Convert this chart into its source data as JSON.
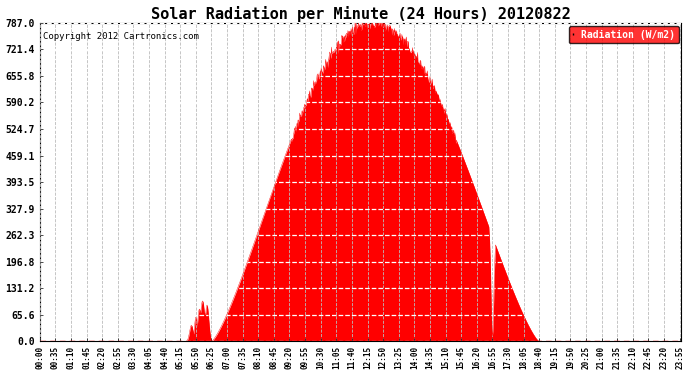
{
  "title": "Solar Radiation per Minute (24 Hours) 20120822",
  "copyright": "Copyright 2012 Cartronics.com",
  "legend_label": "Radiation (W/m2)",
  "fill_color": "#FF0000",
  "line_color": "#FF0000",
  "background_color": "#FFFFFF",
  "yticks": [
    0.0,
    65.6,
    131.2,
    196.8,
    262.3,
    327.9,
    393.5,
    459.1,
    524.7,
    590.2,
    655.8,
    721.4,
    787.0
  ],
  "ymax": 787.0,
  "ymin": 0.0,
  "total_minutes": 1440,
  "sunrise_minute": 385,
  "sunset_minute": 1120,
  "peak_minute": 745,
  "peak_value": 787.0,
  "xtick_interval": 35,
  "xtick_labels": [
    "00:00",
    "00:35",
    "01:10",
    "01:45",
    "02:20",
    "02:55",
    "03:30",
    "04:05",
    "04:40",
    "05:15",
    "05:50",
    "06:25",
    "07:00",
    "07:35",
    "08:10",
    "08:45",
    "09:20",
    "09:55",
    "10:30",
    "11:05",
    "11:40",
    "12:15",
    "12:50",
    "13:25",
    "14:00",
    "14:35",
    "15:10",
    "15:45",
    "16:20",
    "16:55",
    "17:30",
    "18:05",
    "18:40",
    "19:15",
    "19:50",
    "20:25",
    "21:00",
    "21:35",
    "22:10",
    "22:45",
    "23:20",
    "23:55"
  ]
}
